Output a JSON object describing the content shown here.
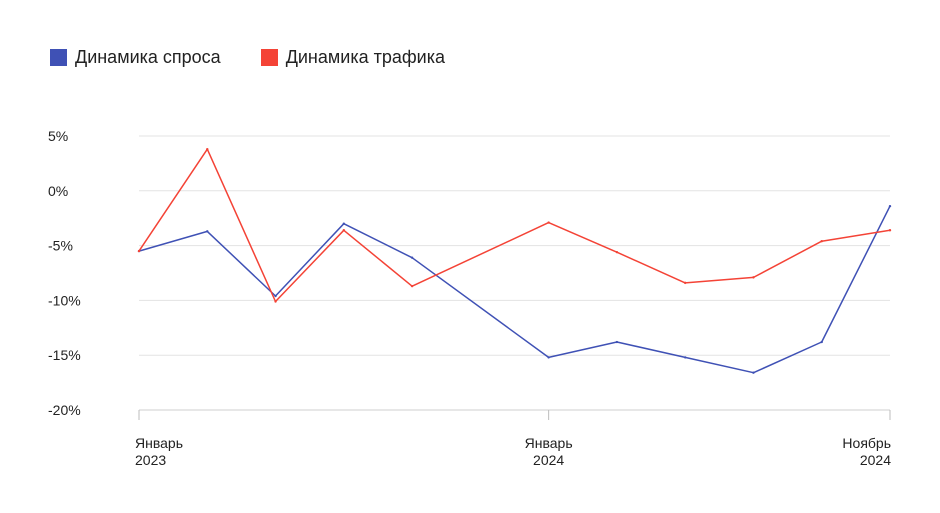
{
  "chart_data": {
    "type": "line",
    "title": "",
    "xlabel": "",
    "ylabel": "",
    "ylim": [
      -20,
      5
    ],
    "y_ticks": [
      {
        "value": 5,
        "label": "5%"
      },
      {
        "value": 0,
        "label": "0%"
      },
      {
        "value": -5,
        "label": "-5%"
      },
      {
        "value": -10,
        "label": "-10%"
      },
      {
        "value": -15,
        "label": "-15%"
      },
      {
        "value": -20,
        "label": "-20%"
      }
    ],
    "x": [
      "2023-01",
      "2023-03",
      "2023-05",
      "2023-07",
      "2023-09",
      "2024-01",
      "2024-03",
      "2024-05",
      "2024-07",
      "2024-09",
      "2024-11"
    ],
    "x_ticks": [
      {
        "x": "2023-01",
        "line1": "Январь",
        "line2": "2023",
        "anchor": "start"
      },
      {
        "x": "2024-01",
        "line1": "Январь",
        "line2": "2024",
        "anchor": "middle"
      },
      {
        "x": "2024-11",
        "line1": "Ноябрь",
        "line2": "2024",
        "anchor": "end"
      }
    ],
    "grid": true,
    "legend_position": "top-left",
    "series": [
      {
        "name": "Динамика спроса",
        "color": "#3f51b5",
        "values": [
          -5.5,
          -3.7,
          -9.6,
          -3.0,
          -6.1,
          -15.2,
          -13.8,
          -15.2,
          -16.6,
          -13.8,
          -1.4
        ]
      },
      {
        "name": "Динамика трафика",
        "color": "#f44336",
        "values": [
          -5.5,
          3.8,
          -10.1,
          -3.6,
          -8.7,
          -2.9,
          -5.6,
          -8.4,
          -7.9,
          -4.6,
          -3.6
        ]
      }
    ]
  }
}
